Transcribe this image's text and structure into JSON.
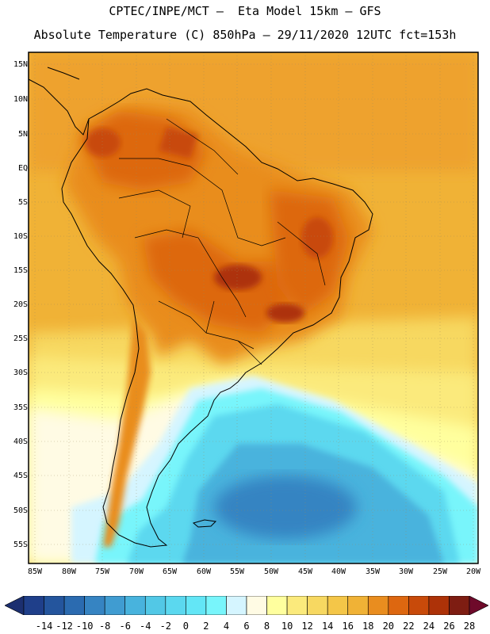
{
  "header": {
    "line1": "CPTEC/INPE/MCT —  Eta Model 15km — GFS",
    "line2": "Absolute Temperature (C) 850hPa — 29/11/2020 12UTC fct=153h"
  },
  "map": {
    "lat_labels": [
      "15N",
      "10N",
      "5N",
      "EQ",
      "5S",
      "10S",
      "15S",
      "20S",
      "25S",
      "30S",
      "35S",
      "40S",
      "45S",
      "50S",
      "55S"
    ],
    "lon_labels": [
      "85W",
      "80W",
      "75W",
      "70W",
      "65W",
      "60W",
      "55W",
      "50W",
      "45W",
      "40W",
      "35W",
      "30W",
      "25W",
      "20W"
    ],
    "region": "South America",
    "palette": {
      "c_14": "#1f3f8a",
      "c_12": "#24559d",
      "c_10": "#2b6bb0",
      "c_8": "#3684c2",
      "c_6": "#409cd1",
      "c_4": "#48b3dd",
      "c_2": "#52c8e6",
      "c0": "#5bd8ef",
      "c2": "#63e6f6",
      "c4": "#78f5fb",
      "c6": "#d5f5ff",
      "c8": "#fffbe4",
      "c10": "#ffff9e",
      "c12": "#fbea7c",
      "c14": "#f7d861",
      "c16": "#f4c648",
      "c18": "#f0b236",
      "c20": "#e98d1f",
      "c22": "#dd6710",
      "c24": "#c84a0a",
      "c26": "#ad3208",
      "c28": "#7e1d12"
    }
  },
  "colorbar": {
    "labels": [
      "-14",
      "-12",
      "-10",
      "-8",
      "-6",
      "-4",
      "-2",
      "0",
      "2",
      "4",
      "6",
      "8",
      "10",
      "12",
      "14",
      "16",
      "18",
      "20",
      "22",
      "24",
      "26",
      "28"
    ],
    "colors": [
      "#1f3f8a",
      "#24559d",
      "#2b6bb0",
      "#3684c2",
      "#409cd1",
      "#48b3dd",
      "#52c8e6",
      "#5bd8ef",
      "#63e6f6",
      "#78f5fb",
      "#d5f5ff",
      "#fffbe4",
      "#ffff9e",
      "#fbea7c",
      "#f7d861",
      "#f4c648",
      "#f0b236",
      "#e98d1f",
      "#dd6710",
      "#c84a0a",
      "#ad3208",
      "#7e1d12"
    ]
  }
}
